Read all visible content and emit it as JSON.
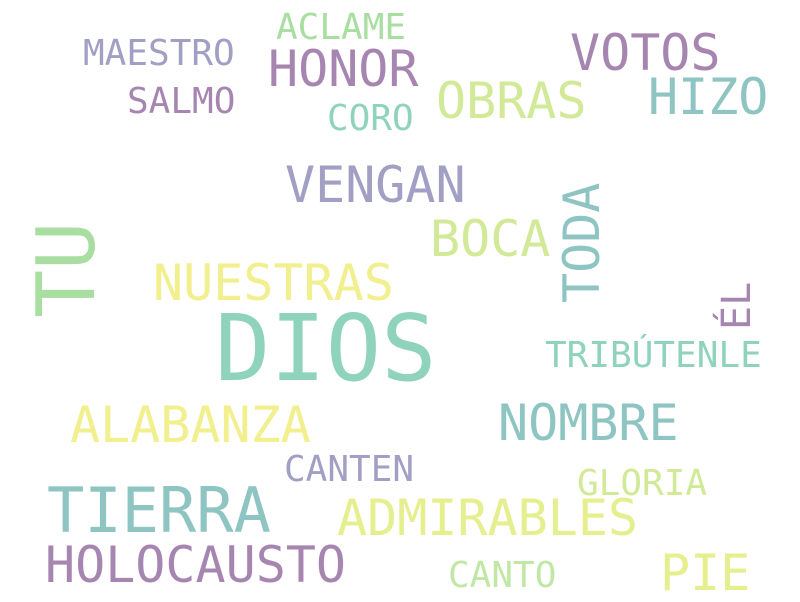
{
  "colors": {
    "teal": "#8fd3bd",
    "slate_teal": "#8ec5c2",
    "lavender": "#a29fc5",
    "purple": "#a686b0",
    "yellow": "#f2ef8e",
    "lime": "#d2ea98",
    "green": "#a8dea0"
  },
  "words": {
    "dios": {
      "text": "DIOS",
      "color": "#8fd3bd"
    },
    "tu": {
      "text": "TU",
      "color": "#a8dea0"
    },
    "tierra": {
      "text": "TIERRA",
      "color": "#8ec5c2"
    },
    "holocausto": {
      "text": "HOLOCAUSTO",
      "color": "#a686b0"
    },
    "vengan": {
      "text": "VENGAN",
      "color": "#a29fc5"
    },
    "nuestras": {
      "text": "NUESTRAS",
      "color": "#f2ef8e"
    },
    "alabanza": {
      "text": "ALABANZA",
      "color": "#f2ef8e"
    },
    "nombre": {
      "text": "NOMBRE",
      "color": "#8ec5c2"
    },
    "admirables": {
      "text": "ADMIRABLES",
      "color": "#e6ef8e"
    },
    "honor": {
      "text": "HONOR",
      "color": "#a686b0"
    },
    "votos": {
      "text": "VOTOS",
      "color": "#a686b0"
    },
    "hizo": {
      "text": "HIZO",
      "color": "#8ec5c2"
    },
    "obras": {
      "text": "OBRAS",
      "color": "#d2ea98"
    },
    "boca": {
      "text": "BOCA",
      "color": "#d2ea98"
    },
    "toda": {
      "text": "TODA",
      "color": "#8ec5c2"
    },
    "pie": {
      "text": "PIE",
      "color": "#e6ef8e"
    },
    "el": {
      "text": "ÉL",
      "color": "#a686b0"
    },
    "maestro": {
      "text": "MAESTRO",
      "color": "#a29fc5"
    },
    "salmo": {
      "text": "SALMO",
      "color": "#a686b0"
    },
    "aclame": {
      "text": "ACLAME",
      "color": "#a8dea0"
    },
    "coro": {
      "text": "CORO",
      "color": "#8fd3bd"
    },
    "tributenle": {
      "text": "TRIBÚTENLE",
      "color": "#8fd3bd"
    },
    "canten": {
      "text": "CANTEN",
      "color": "#a29fc5"
    },
    "gloria": {
      "text": "GLORIA",
      "color": "#d2ea98"
    },
    "canto": {
      "text": "CANTO",
      "color": "#c0e8a4"
    }
  }
}
